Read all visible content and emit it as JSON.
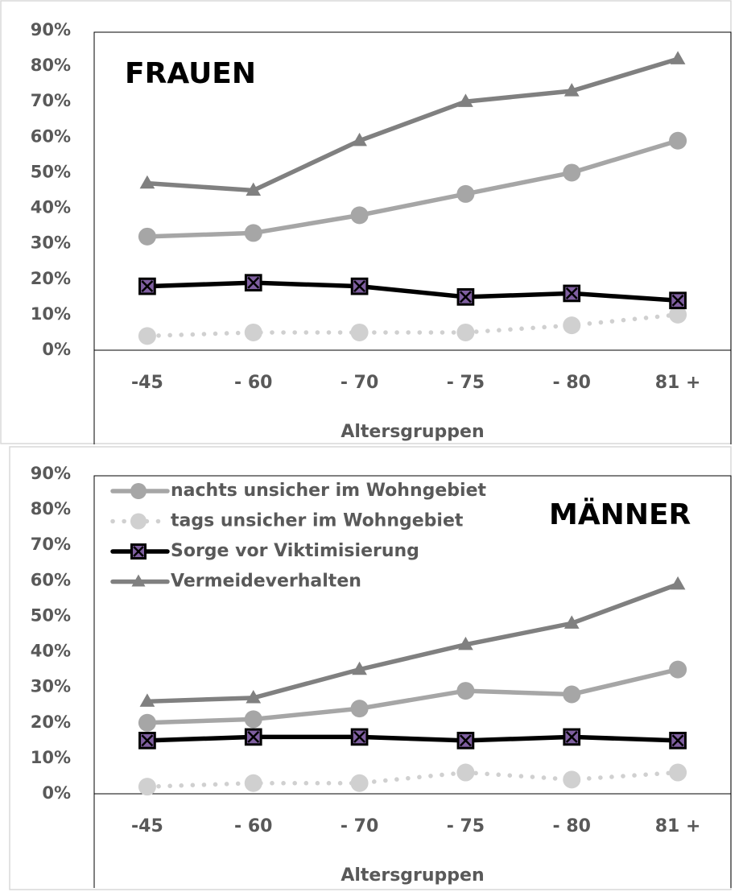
{
  "chart_data": [
    {
      "type": "line",
      "title": "FRAUEN",
      "x_label": "Altersgruppen",
      "categories": [
        "-45",
        "- 60",
        "- 70",
        "- 75",
        "- 80",
        "81 +"
      ],
      "ylim": [
        0,
        90
      ],
      "yticks": [
        {
          "value": 0,
          "label": "0%"
        },
        {
          "value": 10,
          "label": "10%"
        },
        {
          "value": 20,
          "label": "20%"
        },
        {
          "value": 30,
          "label": "30%"
        },
        {
          "value": 40,
          "label": "40%"
        },
        {
          "value": 50,
          "label": "50%"
        },
        {
          "value": 60,
          "label": "60%"
        },
        {
          "value": 70,
          "label": "70%"
        },
        {
          "value": 80,
          "label": "80%"
        },
        {
          "value": 90,
          "label": "90%"
        }
      ],
      "series": [
        {
          "name": "nachts unsicher im Wohngebiet",
          "color": "#a6a6a6",
          "marker": "circle",
          "linestyle": "solid",
          "values": [
            32,
            33,
            38,
            44,
            50,
            59
          ]
        },
        {
          "name": "tags unsicher im Wohngebiet",
          "color": "#d0d0d0",
          "marker": "circle",
          "linestyle": "dotted",
          "values": [
            4,
            5,
            5,
            5,
            7,
            10
          ]
        },
        {
          "name": "Sorge vor Viktimisierung",
          "color": "#000000",
          "marker": "x-square",
          "linestyle": "solid",
          "values": [
            18,
            19,
            18,
            15,
            16,
            14
          ]
        },
        {
          "name": "Vermeideverhalten",
          "color": "#808080",
          "marker": "triangle",
          "linestyle": "solid",
          "values": [
            47,
            45,
            59,
            70,
            73,
            82
          ]
        }
      ]
    },
    {
      "type": "line",
      "title": "MÄNNER",
      "x_label": "Altersgruppen",
      "legend": "upper left",
      "categories": [
        "-45",
        "- 60",
        "- 70",
        "- 75",
        "- 80",
        "81 +"
      ],
      "ylim": [
        0,
        90
      ],
      "yticks": [
        {
          "value": 0,
          "label": "0%"
        },
        {
          "value": 10,
          "label": "10%"
        },
        {
          "value": 20,
          "label": "20%"
        },
        {
          "value": 30,
          "label": "30%"
        },
        {
          "value": 40,
          "label": "40%"
        },
        {
          "value": 50,
          "label": "50%"
        },
        {
          "value": 60,
          "label": "60%"
        },
        {
          "value": 70,
          "label": "70%"
        },
        {
          "value": 80,
          "label": "80%"
        },
        {
          "value": 90,
          "label": "90%"
        }
      ],
      "series": [
        {
          "name": "nachts unsicher im Wohngebiet",
          "color": "#a6a6a6",
          "marker": "circle",
          "linestyle": "solid",
          "values": [
            20,
            21,
            24,
            29,
            28,
            35
          ]
        },
        {
          "name": "tags unsicher im Wohngebiet",
          "color": "#d0d0d0",
          "marker": "circle",
          "linestyle": "dotted",
          "values": [
            2,
            3,
            3,
            6,
            4,
            6
          ]
        },
        {
          "name": "Sorge vor Viktimisierung",
          "color": "#000000",
          "marker": "x-square",
          "linestyle": "solid",
          "values": [
            15,
            16,
            16,
            15,
            16,
            15
          ]
        },
        {
          "name": "Vermeideverhalten",
          "color": "#808080",
          "marker": "triangle",
          "linestyle": "solid",
          "values": [
            26,
            27,
            35,
            42,
            48,
            59
          ]
        }
      ]
    }
  ]
}
